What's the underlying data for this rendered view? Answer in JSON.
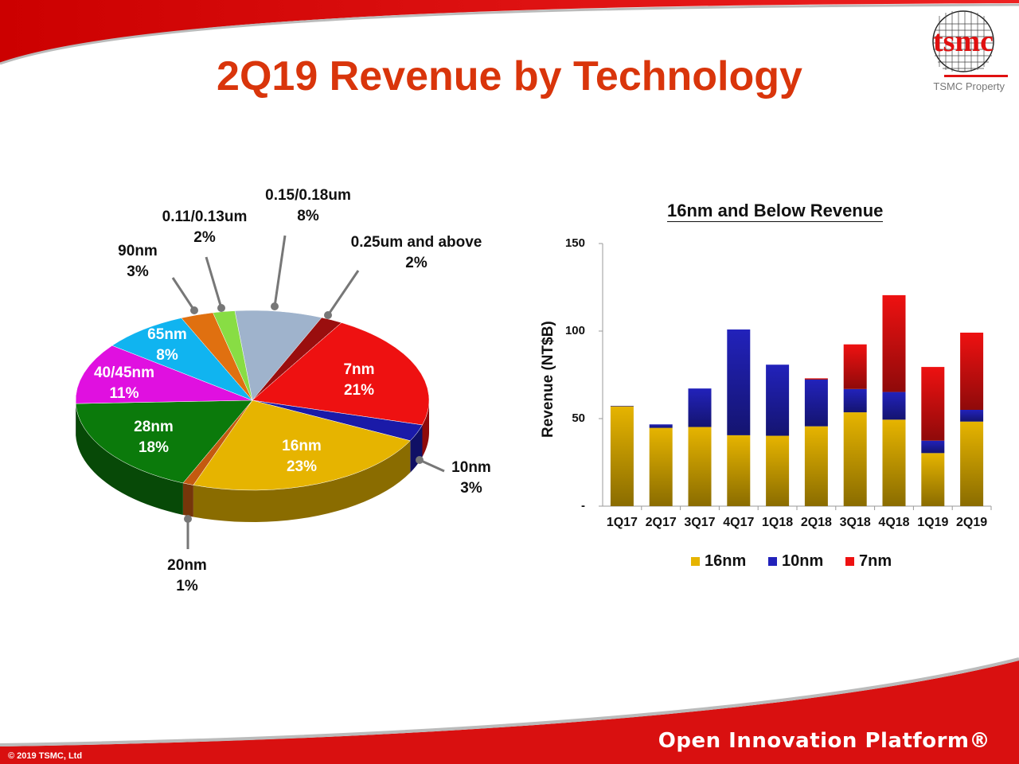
{
  "slide": {
    "title": "2Q19 Revenue by Technology",
    "logo_text": "tsmc",
    "property_label": "TSMC Property",
    "copyright": "© 2019 TSMC, Ltd",
    "footer_brand": "Open Innovation Platform®",
    "accent_color": "#d9350b"
  },
  "chart_data": [
    {
      "type": "pie",
      "style": "3d",
      "slices": [
        {
          "label": "0.15/0.18um",
          "value_label": "8%",
          "value": 8,
          "color": "#9fb3cc"
        },
        {
          "label": "0.25um and above",
          "value_label": "2%",
          "value": 2,
          "color": "#9a0e0e"
        },
        {
          "label": "7nm",
          "value_label": "21%",
          "value": 21,
          "color": "#ee1111"
        },
        {
          "label": "10nm",
          "value_label": "3%",
          "value": 3,
          "color": "#1a1aa8"
        },
        {
          "label": "16nm",
          "value_label": "23%",
          "value": 23,
          "color": "#e6b400"
        },
        {
          "label": "20nm",
          "value_label": "1%",
          "value": 1,
          "color": "#c45a10"
        },
        {
          "label": "28nm",
          "value_label": "18%",
          "value": 18,
          "color": "#0b7a0b"
        },
        {
          "label": "40/45nm",
          "value_label": "11%",
          "value": 11,
          "color": "#e010e0"
        },
        {
          "label": "65nm",
          "value_label": "8%",
          "value": 8,
          "color": "#10b4f0"
        },
        {
          "label": "90nm",
          "value_label": "3%",
          "value": 3,
          "color": "#e07010"
        },
        {
          "label": "0.11/0.13um",
          "value_label": "2%",
          "value": 2,
          "color": "#88dd44"
        }
      ]
    },
    {
      "type": "bar",
      "stacked": true,
      "title": "16nm and Below Revenue",
      "ylabel": "Revenue (NT$B)",
      "ylim": [
        0,
        150
      ],
      "yticks": [
        "-",
        "50",
        "100",
        "150"
      ],
      "ytick_values": [
        0,
        50,
        100,
        150
      ],
      "grid": false,
      "legend_position": "bottom",
      "categories": [
        "1Q17",
        "2Q17",
        "3Q17",
        "4Q17",
        "1Q18",
        "2Q18",
        "3Q18",
        "4Q18",
        "1Q19",
        "2Q19"
      ],
      "series": [
        {
          "name": "16nm",
          "color": "#e6b400",
          "values": [
            57,
            44.7,
            45.2,
            40.5,
            40.2,
            45.6,
            53.6,
            49.4,
            30.3,
            48.3
          ]
        },
        {
          "name": "10nm",
          "color": "#2222bb",
          "values": [
            0.3,
            2,
            22,
            60.4,
            40.6,
            26.7,
            13.3,
            15.8,
            7.1,
            6.7
          ]
        },
        {
          "name": "7nm",
          "color": "#ee1111",
          "values": [
            0,
            0,
            0,
            0,
            0,
            0.7,
            25.5,
            55.3,
            42.1,
            44.1
          ]
        }
      ]
    }
  ]
}
